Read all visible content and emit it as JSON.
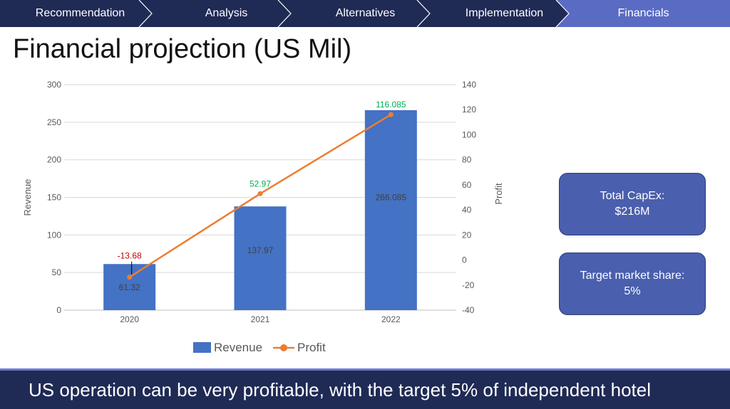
{
  "nav": {
    "items": [
      {
        "label": "Recommendation",
        "active": false
      },
      {
        "label": "Analysis",
        "active": false
      },
      {
        "label": "Alternatives",
        "active": false
      },
      {
        "label": "Implementation",
        "active": false
      },
      {
        "label": "Financials",
        "active": true
      }
    ],
    "bg_color": "#1f2a55",
    "active_color": "#5a6bc4"
  },
  "title": "Financial projection (US Mil)",
  "chart_data": {
    "type": "bar",
    "categories": [
      "2020",
      "2021",
      "2022"
    ],
    "series": [
      {
        "name": "Revenue",
        "type": "bar",
        "axis": "left",
        "values": [
          61.32,
          137.97,
          266.085
        ],
        "color": "#4472c4",
        "labels": [
          "61.32",
          "137.97",
          "266.085"
        ]
      },
      {
        "name": "Profit",
        "type": "line",
        "axis": "right",
        "values": [
          -13.68,
          52.97,
          116.085
        ],
        "color": "#ed7d31",
        "labels": [
          "-13.68",
          "52.97",
          "116.085"
        ],
        "label_colors": [
          "#c00000",
          "#00b050",
          "#00b050"
        ]
      }
    ],
    "y_left": {
      "label": "Revenue",
      "range": [
        0,
        300
      ],
      "ticks": [
        "0",
        "50",
        "100",
        "150",
        "200",
        "250",
        "300"
      ]
    },
    "y_right": {
      "label": "Profit",
      "range": [
        -40,
        140
      ],
      "ticks": [
        "-40",
        "-20",
        "0",
        "20",
        "40",
        "60",
        "80",
        "100",
        "120",
        "140"
      ]
    },
    "grid": true,
    "legend": {
      "position": "bottom",
      "entries": [
        "Revenue",
        "Profit"
      ]
    }
  },
  "side_boxes": [
    {
      "label": "Total CapEx:",
      "value": "$216M"
    },
    {
      "label": "Target market share:",
      "value": "5%"
    }
  ],
  "footer": "US operation can be very profitable, with the target 5% of independent hotel"
}
